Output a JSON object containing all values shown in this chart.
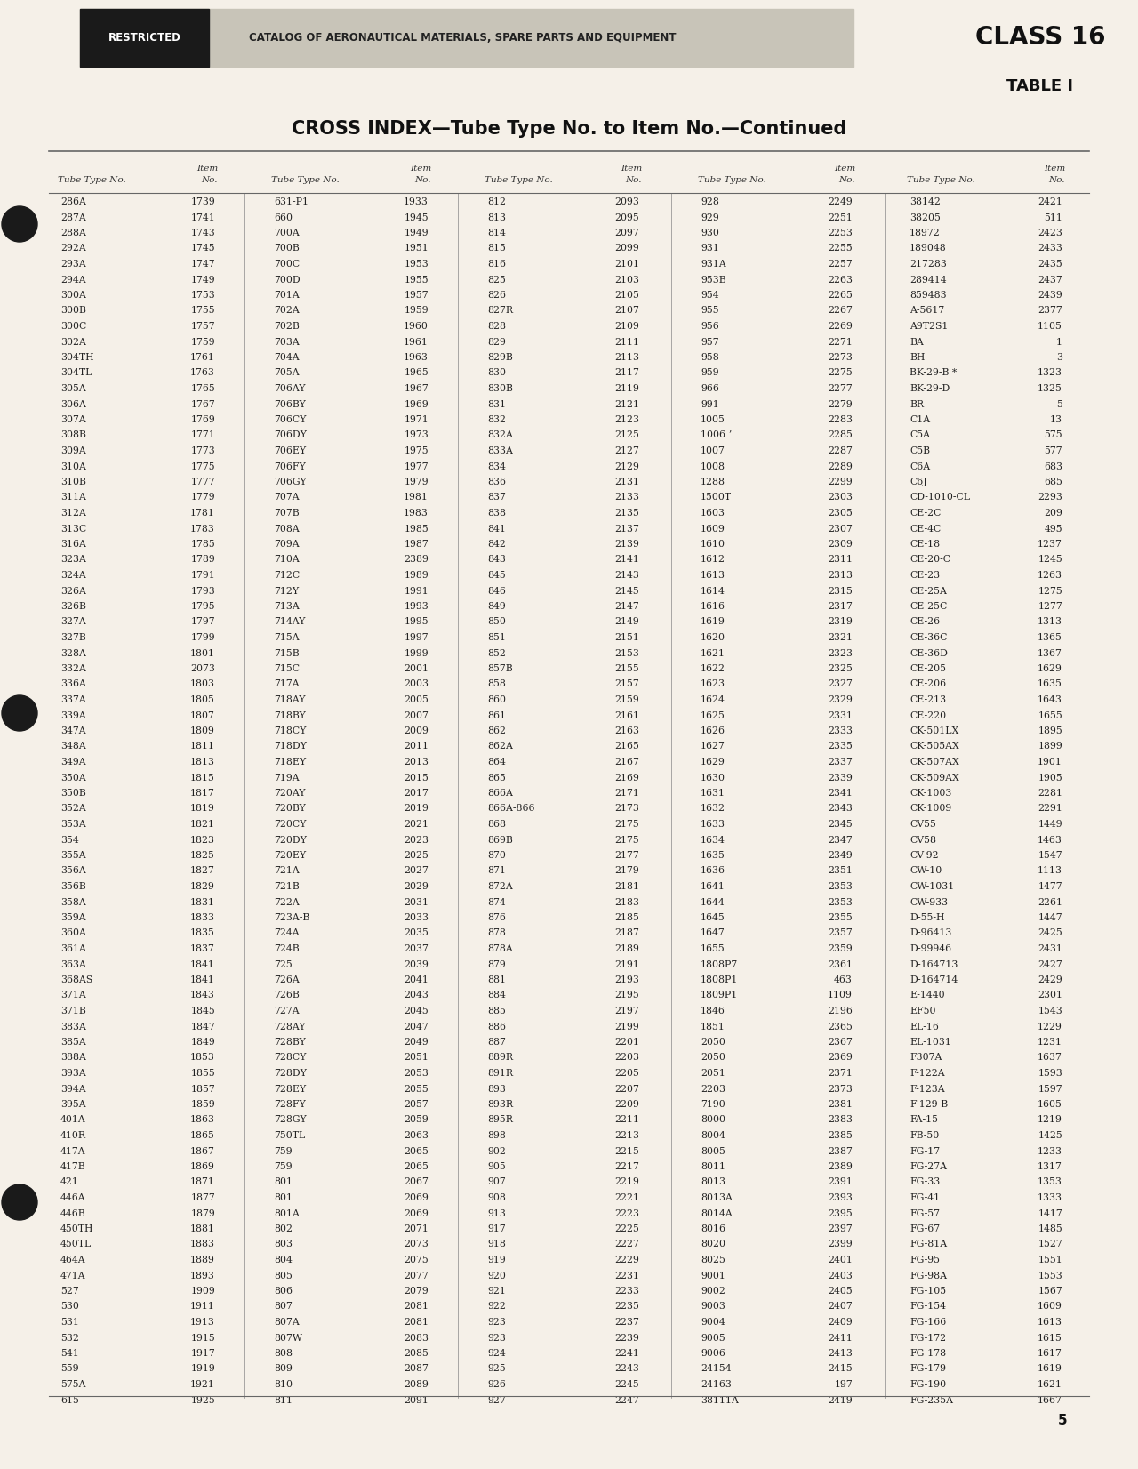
{
  "background_color": "#f5f0e8",
  "header_bg": "#d0ccc0",
  "restricted_bg": "#1a1a1a",
  "restricted_text": "#ffffff",
  "title": "CROSS INDEX—Tube Type No. to Item No.—Continued",
  "class_text": "CLASS 16",
  "table_text": "TABLE I",
  "catalog_text": "CATALOG OF AERONAUTICAL MATERIALS, SPARE PARTS AND EQUIPMENT",
  "page_number": "5",
  "col_headers": [
    "Tube Type No.",
    "Item\nNo.",
    "Tube Type No.",
    "Item\nNo.",
    "Tube Type No.",
    "Item\nNo.",
    "Tube Type No.",
    "Item\nNo.",
    "Tube Type No.",
    "Item\nNo."
  ],
  "table_data": [
    [
      "286A",
      "1739",
      "631-P1",
      "1933",
      "812",
      "2093",
      "928",
      "2249",
      "38142",
      "2421"
    ],
    [
      "287A",
      "1741",
      "660",
      "1945",
      "813",
      "2095",
      "929",
      "2251",
      "38205",
      "511"
    ],
    [
      "288A",
      "1743",
      "700A",
      "1949",
      "814",
      "2097",
      "930",
      "2253",
      "18972",
      "2423"
    ],
    [
      "292A",
      "1745",
      "700B",
      "1951",
      "815",
      "2099",
      "931",
      "2255",
      "189048",
      "2433"
    ],
    [
      "293A",
      "1747",
      "700C",
      "1953",
      "816",
      "2101",
      "931A",
      "2257",
      "217283",
      "2435"
    ],
    [
      "294A",
      "1749",
      "700D",
      "1955",
      "825",
      "2103",
      "953B",
      "2263",
      "289414",
      "2437"
    ],
    [
      "300A",
      "1753",
      "701A",
      "1957",
      "826",
      "2105",
      "954",
      "2265",
      "859483",
      "2439"
    ],
    [
      "300B",
      "1755",
      "702A",
      "1959",
      "827R",
      "2107",
      "955",
      "2267",
      "A-5617",
      "2377"
    ],
    [
      "300C",
      "1757",
      "702B",
      "1960",
      "828",
      "2109",
      "956",
      "2269",
      "A9T2S1",
      "1105"
    ],
    [
      "302A",
      "1759",
      "703A",
      "1961",
      "829",
      "2111",
      "957",
      "2271",
      "BA",
      "1"
    ],
    [
      "304TH",
      "1761",
      "704A",
      "1963",
      "829B",
      "2113",
      "958",
      "2273",
      "BH",
      "3"
    ],
    [
      "304TL",
      "1763",
      "705A",
      "1965",
      "830",
      "2117",
      "959",
      "2275",
      "BK-29-B *",
      "1323"
    ],
    [
      "305A",
      "1765",
      "706AY",
      "1967",
      "830B",
      "2119",
      "966",
      "2277",
      "BK-29-D",
      "1325"
    ],
    [
      "306A",
      "1767",
      "706BY",
      "1969",
      "831",
      "2121",
      "991",
      "2279",
      "BR",
      "5"
    ],
    [
      "307A",
      "1769",
      "706CY",
      "1971",
      "832",
      "2123",
      "1005",
      "2283",
      "C1A",
      "13"
    ],
    [
      "308B",
      "1771",
      "706DY",
      "1973",
      "832A",
      "2125",
      "1006 ʼ",
      "2285",
      "C5A",
      "575"
    ],
    [
      "309A",
      "1773",
      "706EY",
      "1975",
      "833A",
      "2127",
      "1007",
      "2287",
      "C5B",
      "577"
    ],
    [
      "310A",
      "1775",
      "706FY",
      "1977",
      "834",
      "2129",
      "1008",
      "2289",
      "C6A",
      "683"
    ],
    [
      "310B",
      "1777",
      "706GY",
      "1979",
      "836",
      "2131",
      "1288",
      "2299",
      "C6J",
      "685"
    ],
    [
      "311A",
      "1779",
      "707A",
      "1981",
      "837",
      "2133",
      "1500T",
      "2303",
      "CD-1010-CL",
      "2293"
    ],
    [
      "312A",
      "1781",
      "707B",
      "1983",
      "838",
      "2135",
      "1603",
      "2305",
      "CE-2C",
      "209"
    ],
    [
      "313C",
      "1783",
      "708A",
      "1985",
      "841",
      "2137",
      "1609",
      "2307",
      "CE-4C",
      "495"
    ],
    [
      "316A",
      "1785",
      "709A",
      "1987",
      "842",
      "2139",
      "1610",
      "2309",
      "CE-18",
      "1237"
    ],
    [
      "323A",
      "1789",
      "710A",
      "2389",
      "843",
      "2141",
      "1612",
      "2311",
      "CE-20-C",
      "1245"
    ],
    [
      "324A",
      "1791",
      "712C",
      "1989",
      "845",
      "2143",
      "1613",
      "2313",
      "CE-23",
      "1263"
    ],
    [
      "326A",
      "1793",
      "712Y",
      "1991",
      "846",
      "2145",
      "1614",
      "2315",
      "CE-25A",
      "1275"
    ],
    [
      "326B",
      "1795",
      "713A",
      "1993",
      "849",
      "2147",
      "1616",
      "2317",
      "CE-25C",
      "1277"
    ],
    [
      "327A",
      "1797",
      "714AY",
      "1995",
      "850",
      "2149",
      "1619",
      "2319",
      "CE-26",
      "1313"
    ],
    [
      "327B",
      "1799",
      "715A",
      "1997",
      "851",
      "2151",
      "1620",
      "2321",
      "CE-36C",
      "1365"
    ],
    [
      "328A",
      "1801",
      "715B",
      "1999",
      "852",
      "2153",
      "1621",
      "2323",
      "CE-36D",
      "1367"
    ],
    [
      "332A",
      "2073",
      "715C",
      "2001",
      "857B",
      "2155",
      "1622",
      "2325",
      "CE-205",
      "1629"
    ],
    [
      "336A",
      "1803",
      "717A",
      "2003",
      "858",
      "2157",
      "1623",
      "2327",
      "CE-206",
      "1635"
    ],
    [
      "337A",
      "1805",
      "718AY",
      "2005",
      "860",
      "2159",
      "1624",
      "2329",
      "CE-213",
      "1643"
    ],
    [
      "339A",
      "1807",
      "718BY",
      "2007",
      "861",
      "2161",
      "1625",
      "2331",
      "CE-220",
      "1655"
    ],
    [
      "347A",
      "1809",
      "718CY",
      "2009",
      "862",
      "2163",
      "1626",
      "2333",
      "CK-501LX",
      "1895"
    ],
    [
      "348A",
      "1811",
      "718DY",
      "2011",
      "862A",
      "2165",
      "1627",
      "2335",
      "CK-505AX",
      "1899"
    ],
    [
      "349A",
      "1813",
      "718EY",
      "2013",
      "864",
      "2167",
      "1629",
      "2337",
      "CK-507AX",
      "1901"
    ],
    [
      "350A",
      "1815",
      "719A",
      "2015",
      "865",
      "2169",
      "1630",
      "2339",
      "CK-509AX",
      "1905"
    ],
    [
      "350B",
      "1817",
      "720AY",
      "2017",
      "866A",
      "2171",
      "1631",
      "2341",
      "CK-1003",
      "2281"
    ],
    [
      "352A",
      "1819",
      "720BY",
      "2019",
      "866A-866",
      "2173",
      "1632",
      "2343",
      "CK-1009",
      "2291"
    ],
    [
      "353A",
      "1821",
      "720CY",
      "2021",
      "868",
      "2175",
      "1633",
      "2345",
      "CV55",
      "1449"
    ],
    [
      "354",
      "1823",
      "720DY",
      "2023",
      "869B",
      "2175",
      "1634",
      "2347",
      "CV58",
      "1463"
    ],
    [
      "355A",
      "1825",
      "720EY",
      "2025",
      "870",
      "2177",
      "1635",
      "2349",
      "CV-92",
      "1547"
    ],
    [
      "356A",
      "1827",
      "721A",
      "2027",
      "871",
      "2179",
      "1636",
      "2351",
      "CW-10",
      "1113"
    ],
    [
      "356B",
      "1829",
      "721B",
      "2029",
      "872A",
      "2181",
      "1641",
      "2353",
      "CW-1031",
      "1477"
    ],
    [
      "358A",
      "1831",
      "722A",
      "2031",
      "874",
      "2183",
      "1644",
      "2353",
      "CW-933",
      "2261"
    ],
    [
      "359A",
      "1833",
      "723A-B",
      "2033",
      "876",
      "2185",
      "1645",
      "2355",
      "D-55-H",
      "1447"
    ],
    [
      "360A",
      "1835",
      "724A",
      "2035",
      "878",
      "2187",
      "1647",
      "2357",
      "D-96413",
      "2425"
    ],
    [
      "361A",
      "1837",
      "724B",
      "2037",
      "878A",
      "2189",
      "1655",
      "2359",
      "D-99946",
      "2431"
    ],
    [
      "363A",
      "1841",
      "725",
      "2039",
      "879",
      "2191",
      "1808P7",
      "2361",
      "D-164713",
      "2427"
    ],
    [
      "368AS",
      "1841",
      "726A",
      "2041",
      "881",
      "2193",
      "1808P1",
      "463",
      "D-164714",
      "2429"
    ],
    [
      "371A",
      "1843",
      "726B",
      "2043",
      "884",
      "2195",
      "1809P1",
      "1109",
      "E-1440",
      "2301"
    ],
    [
      "371B",
      "1845",
      "727A",
      "2045",
      "885",
      "2197",
      "1846",
      "2196",
      "EF50",
      "1543"
    ],
    [
      "383A",
      "1847",
      "728AY",
      "2047",
      "886",
      "2199",
      "1851",
      "2365",
      "EL-16",
      "1229"
    ],
    [
      "385A",
      "1849",
      "728BY",
      "2049",
      "887",
      "2201",
      "2050",
      "2367",
      "EL-1031",
      "1231"
    ],
    [
      "388A",
      "1853",
      "728CY",
      "2051",
      "889R",
      "2203",
      "2050",
      "2369",
      "F307A",
      "1637"
    ],
    [
      "393A",
      "1855",
      "728DY",
      "2053",
      "891R",
      "2205",
      "2051",
      "2371",
      "F-122A",
      "1593"
    ],
    [
      "394A",
      "1857",
      "728EY",
      "2055",
      "893",
      "2207",
      "2203",
      "2373",
      "F-123A",
      "1597"
    ],
    [
      "395A",
      "1859",
      "728FY",
      "2057",
      "893R",
      "2209",
      "7190",
      "2381",
      "F-129-B",
      "1605"
    ],
    [
      "401A",
      "1863",
      "728GY",
      "2059",
      "895R",
      "2211",
      "8000",
      "2383",
      "FA-15",
      "1219"
    ],
    [
      "410R",
      "1865",
      "750TL",
      "2063",
      "898",
      "2213",
      "8004",
      "2385",
      "FB-50",
      "1425"
    ],
    [
      "417A",
      "1867",
      "759",
      "2065",
      "902",
      "2215",
      "8005",
      "2387",
      "FG-17",
      "1233"
    ],
    [
      "417B",
      "1869",
      "759",
      "2065",
      "905",
      "2217",
      "8011",
      "2389",
      "FG-27A",
      "1317"
    ],
    [
      "421",
      "1871",
      "801",
      "2067",
      "907",
      "2219",
      "8013",
      "2391",
      "FG-33",
      "1353"
    ],
    [
      "446A",
      "1877",
      "801",
      "2069",
      "908",
      "2221",
      "8013A",
      "2393",
      "FG-41",
      "1333"
    ],
    [
      "446B",
      "1879",
      "801A",
      "2069",
      "913",
      "2223",
      "8014A",
      "2395",
      "FG-57",
      "1417"
    ],
    [
      "450TH",
      "1881",
      "802",
      "2071",
      "917",
      "2225",
      "8016",
      "2397",
      "FG-67",
      "1485"
    ],
    [
      "450TL",
      "1883",
      "803",
      "2073",
      "918",
      "2227",
      "8020",
      "2399",
      "FG-81A",
      "1527"
    ],
    [
      "464A",
      "1889",
      "804",
      "2075",
      "919",
      "2229",
      "8025",
      "2401",
      "FG-95",
      "1551"
    ],
    [
      "471A",
      "1893",
      "805",
      "2077",
      "920",
      "2231",
      "9001",
      "2403",
      "FG-98A",
      "1553"
    ],
    [
      "527",
      "1909",
      "806",
      "2079",
      "921",
      "2233",
      "9002",
      "2405",
      "FG-105",
      "1567"
    ],
    [
      "530",
      "1911",
      "807",
      "2081",
      "922",
      "2235",
      "9003",
      "2407",
      "FG-154",
      "1609"
    ],
    [
      "531",
      "1913",
      "807A",
      "2081",
      "923",
      "2237",
      "9004",
      "2409",
      "FG-166",
      "1613"
    ],
    [
      "532",
      "1915",
      "807W",
      "2083",
      "923",
      "2239",
      "9005",
      "2411",
      "FG-172",
      "1615"
    ],
    [
      "541",
      "1917",
      "808",
      "2085",
      "924",
      "2241",
      "9006",
      "2413",
      "FG-178",
      "1617"
    ],
    [
      "559",
      "1919",
      "809",
      "2087",
      "925",
      "2243",
      "24154",
      "2415",
      "FG-179",
      "1619"
    ],
    [
      "575A",
      "1921",
      "810",
      "2089",
      "926",
      "2245",
      "24163",
      "197",
      "FG-190",
      "1621"
    ],
    [
      "615",
      "1925",
      "811",
      "2091",
      "927",
      "2247",
      "38111A",
      "2419",
      "FG-235A",
      "1667"
    ]
  ]
}
